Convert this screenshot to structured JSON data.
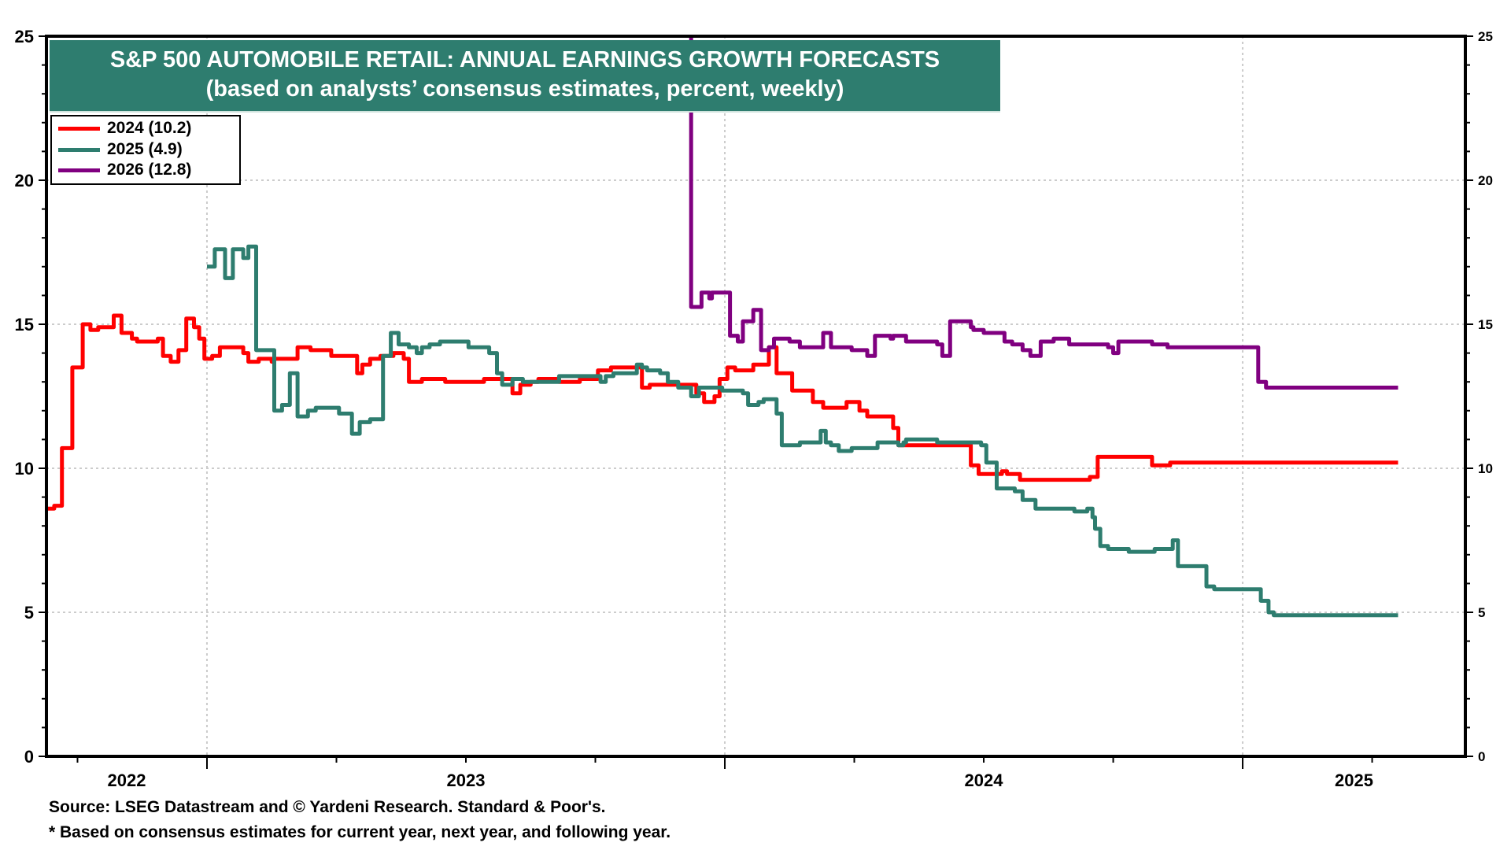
{
  "chart_data": {
    "type": "line",
    "title": "S&P 500 AUTOMOBILE RETAIL: ANNUAL EARNINGS GROWTH FORECASTS",
    "subtitle": "(based on analysts’ consensus estimates, percent, weekly)",
    "xlabel": "",
    "ylabel": "",
    "ylim": [
      0,
      25
    ],
    "xlim": [
      2022.69,
      2025.43
    ],
    "y_ticks": [
      0,
      5,
      10,
      15,
      20,
      25
    ],
    "y_ticks_right": [
      0,
      5,
      10,
      15,
      20,
      25
    ],
    "x_tick_labels": [
      {
        "label": "2022",
        "at": 2022.845
      },
      {
        "label": "2023",
        "at": 2023.5
      },
      {
        "label": "2024",
        "at": 2024.5
      },
      {
        "label": "2025",
        "at": 2025.215
      }
    ],
    "year_boundaries": [
      2023,
      2024,
      2025
    ],
    "grid": true,
    "legend_position": "top-left",
    "step": true,
    "series": [
      {
        "name": "2024 (10.2)",
        "color": "#ff0000",
        "points": [
          [
            2022.69,
            8.6
          ],
          [
            2022.705,
            8.7
          ],
          [
            2022.72,
            10.7
          ],
          [
            2022.74,
            13.5
          ],
          [
            2022.76,
            15.0
          ],
          [
            2022.775,
            14.8
          ],
          [
            2022.79,
            14.9
          ],
          [
            2022.82,
            15.3
          ],
          [
            2022.835,
            14.7
          ],
          [
            2022.855,
            14.5
          ],
          [
            2022.865,
            14.4
          ],
          [
            2022.905,
            14.5
          ],
          [
            2022.915,
            13.9
          ],
          [
            2022.93,
            13.7
          ],
          [
            2022.945,
            14.1
          ],
          [
            2022.96,
            15.2
          ],
          [
            2022.975,
            14.9
          ],
          [
            2022.985,
            14.5
          ],
          [
            2022.995,
            13.8
          ],
          [
            2023.01,
            13.9
          ],
          [
            2023.025,
            14.2
          ],
          [
            2023.07,
            14.0
          ],
          [
            2023.08,
            13.7
          ],
          [
            2023.1,
            13.8
          ],
          [
            2023.125,
            13.7
          ],
          [
            2023.13,
            13.8
          ],
          [
            2023.175,
            14.2
          ],
          [
            2023.2,
            14.1
          ],
          [
            2023.24,
            13.9
          ],
          [
            2023.29,
            13.3
          ],
          [
            2023.3,
            13.6
          ],
          [
            2023.315,
            13.8
          ],
          [
            2023.335,
            13.9
          ],
          [
            2023.36,
            14.0
          ],
          [
            2023.38,
            13.8
          ],
          [
            2023.39,
            13.0
          ],
          [
            2023.415,
            13.1
          ],
          [
            2023.46,
            13.0
          ],
          [
            2023.535,
            13.1
          ],
          [
            2023.59,
            12.6
          ],
          [
            2023.605,
            12.9
          ],
          [
            2023.625,
            13.0
          ],
          [
            2023.64,
            13.1
          ],
          [
            2023.68,
            13.0
          ],
          [
            2023.72,
            13.1
          ],
          [
            2023.755,
            13.4
          ],
          [
            2023.78,
            13.5
          ],
          [
            2023.84,
            12.8
          ],
          [
            2023.855,
            12.9
          ],
          [
            2023.945,
            12.6
          ],
          [
            2023.96,
            12.3
          ],
          [
            2023.98,
            12.5
          ],
          [
            2023.99,
            13.1
          ],
          [
            2024.005,
            13.5
          ],
          [
            2024.02,
            13.4
          ],
          [
            2024.055,
            13.6
          ],
          [
            2024.085,
            14.2
          ],
          [
            2024.1,
            13.3
          ],
          [
            2024.13,
            12.7
          ],
          [
            2024.17,
            12.3
          ],
          [
            2024.19,
            12.1
          ],
          [
            2024.235,
            12.3
          ],
          [
            2024.26,
            12.0
          ],
          [
            2024.275,
            11.8
          ],
          [
            2024.325,
            11.4
          ],
          [
            2024.335,
            10.8
          ],
          [
            2024.475,
            10.1
          ],
          [
            2024.49,
            9.8
          ],
          [
            2024.535,
            9.9
          ],
          [
            2024.545,
            9.8
          ],
          [
            2024.57,
            9.6
          ],
          [
            2024.705,
            9.7
          ],
          [
            2024.72,
            10.4
          ],
          [
            2024.825,
            10.1
          ],
          [
            2024.86,
            10.2
          ],
          [
            2025.3,
            10.2
          ]
        ]
      },
      {
        "name": "2025 (4.9)",
        "color": "#2e7d6f",
        "points": [
          [
            2023.0,
            17.0
          ],
          [
            2023.015,
            17.6
          ],
          [
            2023.035,
            16.6
          ],
          [
            2023.05,
            17.6
          ],
          [
            2023.07,
            17.3
          ],
          [
            2023.08,
            17.7
          ],
          [
            2023.095,
            14.1
          ],
          [
            2023.13,
            12.0
          ],
          [
            2023.145,
            12.2
          ],
          [
            2023.16,
            13.3
          ],
          [
            2023.175,
            11.8
          ],
          [
            2023.195,
            12.0
          ],
          [
            2023.21,
            12.1
          ],
          [
            2023.255,
            11.9
          ],
          [
            2023.28,
            11.2
          ],
          [
            2023.295,
            11.6
          ],
          [
            2023.315,
            11.7
          ],
          [
            2023.34,
            13.9
          ],
          [
            2023.355,
            14.7
          ],
          [
            2023.37,
            14.3
          ],
          [
            2023.39,
            14.2
          ],
          [
            2023.405,
            14.0
          ],
          [
            2023.415,
            14.2
          ],
          [
            2023.43,
            14.3
          ],
          [
            2023.45,
            14.4
          ],
          [
            2023.505,
            14.2
          ],
          [
            2023.545,
            14.0
          ],
          [
            2023.56,
            13.3
          ],
          [
            2023.57,
            12.9
          ],
          [
            2023.59,
            13.1
          ],
          [
            2023.61,
            13.0
          ],
          [
            2023.68,
            13.2
          ],
          [
            2023.76,
            13.0
          ],
          [
            2023.77,
            13.2
          ],
          [
            2023.785,
            13.3
          ],
          [
            2023.83,
            13.6
          ],
          [
            2023.84,
            13.5
          ],
          [
            2023.85,
            13.4
          ],
          [
            2023.875,
            13.3
          ],
          [
            2023.89,
            13.0
          ],
          [
            2023.91,
            12.8
          ],
          [
            2023.935,
            12.5
          ],
          [
            2023.95,
            12.8
          ],
          [
            2023.995,
            12.7
          ],
          [
            2024.035,
            12.6
          ],
          [
            2024.045,
            12.2
          ],
          [
            2024.065,
            12.3
          ],
          [
            2024.075,
            12.4
          ],
          [
            2024.1,
            11.9
          ],
          [
            2024.11,
            10.8
          ],
          [
            2024.145,
            10.9
          ],
          [
            2024.185,
            11.3
          ],
          [
            2024.195,
            10.9
          ],
          [
            2024.205,
            10.8
          ],
          [
            2024.22,
            10.6
          ],
          [
            2024.245,
            10.7
          ],
          [
            2024.295,
            10.9
          ],
          [
            2024.335,
            10.8
          ],
          [
            2024.345,
            10.9
          ],
          [
            2024.35,
            11.0
          ],
          [
            2024.41,
            10.9
          ],
          [
            2024.495,
            10.8
          ],
          [
            2024.505,
            10.2
          ],
          [
            2024.525,
            9.3
          ],
          [
            2024.56,
            9.2
          ],
          [
            2024.575,
            8.9
          ],
          [
            2024.6,
            8.6
          ],
          [
            2024.675,
            8.5
          ],
          [
            2024.7,
            8.6
          ],
          [
            2024.71,
            8.3
          ],
          [
            2024.715,
            7.9
          ],
          [
            2024.725,
            7.3
          ],
          [
            2024.74,
            7.2
          ],
          [
            2024.78,
            7.1
          ],
          [
            2024.83,
            7.2
          ],
          [
            2024.865,
            7.5
          ],
          [
            2024.875,
            6.6
          ],
          [
            2024.93,
            5.9
          ],
          [
            2024.945,
            5.8
          ],
          [
            2025.025,
            5.8
          ],
          [
            2025.035,
            5.4
          ],
          [
            2025.05,
            5.0
          ],
          [
            2025.06,
            4.9
          ],
          [
            2025.3,
            4.9
          ]
        ]
      },
      {
        "name": "2026 (12.8)",
        "color": "#800080",
        "points": [
          [
            2023.93,
            35.0
          ],
          [
            2023.935,
            15.6
          ],
          [
            2023.955,
            16.1
          ],
          [
            2023.97,
            15.9
          ],
          [
            2023.975,
            16.1
          ],
          [
            2024.01,
            14.6
          ],
          [
            2024.025,
            14.4
          ],
          [
            2024.035,
            15.1
          ],
          [
            2024.055,
            15.5
          ],
          [
            2024.07,
            14.1
          ],
          [
            2024.085,
            14.2
          ],
          [
            2024.095,
            14.5
          ],
          [
            2024.125,
            14.4
          ],
          [
            2024.145,
            14.2
          ],
          [
            2024.19,
            14.7
          ],
          [
            2024.205,
            14.2
          ],
          [
            2024.245,
            14.1
          ],
          [
            2024.275,
            13.9
          ],
          [
            2024.29,
            14.6
          ],
          [
            2024.32,
            14.5
          ],
          [
            2024.325,
            14.6
          ],
          [
            2024.35,
            14.4
          ],
          [
            2024.41,
            14.3
          ],
          [
            2024.42,
            13.9
          ],
          [
            2024.435,
            15.1
          ],
          [
            2024.475,
            14.9
          ],
          [
            2024.48,
            14.8
          ],
          [
            2024.5,
            14.7
          ],
          [
            2024.54,
            14.4
          ],
          [
            2024.555,
            14.3
          ],
          [
            2024.575,
            14.1
          ],
          [
            2024.59,
            13.9
          ],
          [
            2024.61,
            14.4
          ],
          [
            2024.635,
            14.5
          ],
          [
            2024.665,
            14.3
          ],
          [
            2024.74,
            14.2
          ],
          [
            2024.75,
            14.0
          ],
          [
            2024.76,
            14.4
          ],
          [
            2024.825,
            14.3
          ],
          [
            2024.855,
            14.2
          ],
          [
            2024.95,
            14.2
          ],
          [
            2025.03,
            13.0
          ],
          [
            2025.045,
            12.8
          ],
          [
            2025.3,
            12.8
          ]
        ]
      }
    ],
    "footnotes": [
      "Source: LSEG Datastream and © Yardeni Research. Standard & Poor's.",
      "* Based on consensus estimates for current year, next year, and following year."
    ]
  }
}
